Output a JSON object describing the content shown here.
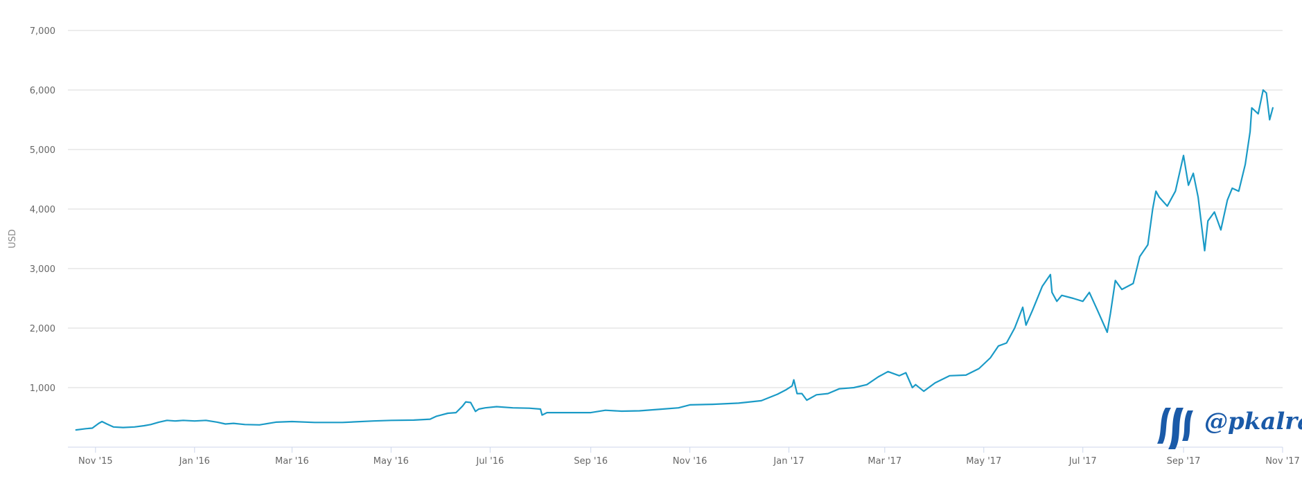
{
  "chart_data": {
    "type": "line",
    "title": "",
    "xlabel": "",
    "ylabel": "USD",
    "ylim": [
      0,
      7000
    ],
    "xlim": [
      "2015-10-15",
      "2017-11-01"
    ],
    "grid": true,
    "y_ticks": [
      {
        "value": 1000,
        "label": "1,000"
      },
      {
        "value": 2000,
        "label": "2,000"
      },
      {
        "value": 3000,
        "label": "3,000"
      },
      {
        "value": 4000,
        "label": "4,000"
      },
      {
        "value": 5000,
        "label": "5,000"
      },
      {
        "value": 6000,
        "label": "6,000"
      },
      {
        "value": 7000,
        "label": "7,000"
      }
    ],
    "x_ticks": [
      {
        "date": "2015-11-01",
        "label": "Nov '15"
      },
      {
        "date": "2016-01-01",
        "label": "Jan '16"
      },
      {
        "date": "2016-03-01",
        "label": "Mar '16"
      },
      {
        "date": "2016-05-01",
        "label": "May '16"
      },
      {
        "date": "2016-07-01",
        "label": "Jul '16"
      },
      {
        "date": "2016-09-01",
        "label": "Sep '16"
      },
      {
        "date": "2016-11-01",
        "label": "Nov '16"
      },
      {
        "date": "2017-01-01",
        "label": "Jan '17"
      },
      {
        "date": "2017-03-01",
        "label": "Mar '17"
      },
      {
        "date": "2017-05-01",
        "label": "May '17"
      },
      {
        "date": "2017-07-01",
        "label": "Jul '17"
      },
      {
        "date": "2017-09-01",
        "label": "Sep '17"
      },
      {
        "date": "2017-11-01",
        "label": "Nov '17"
      }
    ],
    "series": [
      {
        "color": "#1a9ac6",
        "points": [
          [
            "2015-10-20",
            290
          ],
          [
            "2015-10-26",
            310
          ],
          [
            "2015-10-30",
            320
          ],
          [
            "2015-11-03",
            400
          ],
          [
            "2015-11-05",
            430
          ],
          [
            "2015-11-08",
            390
          ],
          [
            "2015-11-12",
            340
          ],
          [
            "2015-11-18",
            330
          ],
          [
            "2015-11-25",
            340
          ],
          [
            "2015-12-01",
            360
          ],
          [
            "2015-12-05",
            380
          ],
          [
            "2015-12-10",
            420
          ],
          [
            "2015-12-15",
            450
          ],
          [
            "2015-12-20",
            440
          ],
          [
            "2015-12-25",
            450
          ],
          [
            "2016-01-01",
            440
          ],
          [
            "2016-01-08",
            450
          ],
          [
            "2016-01-15",
            420
          ],
          [
            "2016-01-20",
            390
          ],
          [
            "2016-01-25",
            400
          ],
          [
            "2016-02-01",
            380
          ],
          [
            "2016-02-10",
            375
          ],
          [
            "2016-02-20",
            420
          ],
          [
            "2016-03-01",
            430
          ],
          [
            "2016-03-15",
            415
          ],
          [
            "2016-04-01",
            415
          ],
          [
            "2016-04-20",
            440
          ],
          [
            "2016-05-01",
            450
          ],
          [
            "2016-05-15",
            455
          ],
          [
            "2016-05-25",
            470
          ],
          [
            "2016-05-29",
            520
          ],
          [
            "2016-06-05",
            570
          ],
          [
            "2016-06-10",
            580
          ],
          [
            "2016-06-14",
            690
          ],
          [
            "2016-06-16",
            760
          ],
          [
            "2016-06-19",
            750
          ],
          [
            "2016-06-22",
            600
          ],
          [
            "2016-06-24",
            640
          ],
          [
            "2016-06-28",
            660
          ],
          [
            "2016-07-05",
            680
          ],
          [
            "2016-07-15",
            660
          ],
          [
            "2016-07-25",
            655
          ],
          [
            "2016-08-01",
            640
          ],
          [
            "2016-08-02",
            540
          ],
          [
            "2016-08-05",
            580
          ],
          [
            "2016-08-15",
            580
          ],
          [
            "2016-09-01",
            580
          ],
          [
            "2016-09-10",
            620
          ],
          [
            "2016-09-20",
            605
          ],
          [
            "2016-10-01",
            610
          ],
          [
            "2016-10-15",
            640
          ],
          [
            "2016-10-25",
            660
          ],
          [
            "2016-11-01",
            710
          ],
          [
            "2016-11-15",
            720
          ],
          [
            "2016-12-01",
            740
          ],
          [
            "2016-12-15",
            780
          ],
          [
            "2016-12-25",
            890
          ],
          [
            "2016-12-30",
            960
          ],
          [
            "2017-01-03",
            1030
          ],
          [
            "2017-01-04",
            1130
          ],
          [
            "2017-01-06",
            900
          ],
          [
            "2017-01-09",
            900
          ],
          [
            "2017-01-12",
            790
          ],
          [
            "2017-01-18",
            880
          ],
          [
            "2017-01-25",
            900
          ],
          [
            "2017-02-01",
            980
          ],
          [
            "2017-02-10",
            1000
          ],
          [
            "2017-02-18",
            1050
          ],
          [
            "2017-02-25",
            1180
          ],
          [
            "2017-03-03",
            1270
          ],
          [
            "2017-03-10",
            1200
          ],
          [
            "2017-03-14",
            1250
          ],
          [
            "2017-03-18",
            1000
          ],
          [
            "2017-03-20",
            1050
          ],
          [
            "2017-03-25",
            940
          ],
          [
            "2017-04-01",
            1080
          ],
          [
            "2017-04-10",
            1200
          ],
          [
            "2017-04-20",
            1210
          ],
          [
            "2017-04-28",
            1320
          ],
          [
            "2017-05-05",
            1500
          ],
          [
            "2017-05-10",
            1700
          ],
          [
            "2017-05-15",
            1750
          ],
          [
            "2017-05-20",
            2000
          ],
          [
            "2017-05-25",
            2350
          ],
          [
            "2017-05-27",
            2050
          ],
          [
            "2017-05-31",
            2300
          ],
          [
            "2017-06-06",
            2700
          ],
          [
            "2017-06-11",
            2900
          ],
          [
            "2017-06-12",
            2600
          ],
          [
            "2017-06-15",
            2450
          ],
          [
            "2017-06-18",
            2550
          ],
          [
            "2017-06-25",
            2500
          ],
          [
            "2017-07-01",
            2450
          ],
          [
            "2017-07-05",
            2600
          ],
          [
            "2017-07-10",
            2300
          ],
          [
            "2017-07-16",
            1930
          ],
          [
            "2017-07-18",
            2250
          ],
          [
            "2017-07-21",
            2800
          ],
          [
            "2017-07-25",
            2650
          ],
          [
            "2017-08-01",
            2750
          ],
          [
            "2017-08-05",
            3200
          ],
          [
            "2017-08-10",
            3400
          ],
          [
            "2017-08-13",
            4000
          ],
          [
            "2017-08-15",
            4300
          ],
          [
            "2017-08-17",
            4200
          ],
          [
            "2017-08-22",
            4050
          ],
          [
            "2017-08-27",
            4300
          ],
          [
            "2017-09-01",
            4900
          ],
          [
            "2017-09-04",
            4400
          ],
          [
            "2017-09-07",
            4600
          ],
          [
            "2017-09-10",
            4200
          ],
          [
            "2017-09-14",
            3300
          ],
          [
            "2017-09-16",
            3800
          ],
          [
            "2017-09-20",
            3950
          ],
          [
            "2017-09-24",
            3650
          ],
          [
            "2017-09-28",
            4150
          ],
          [
            "2017-10-01",
            4350
          ],
          [
            "2017-10-05",
            4300
          ],
          [
            "2017-10-09",
            4750
          ],
          [
            "2017-10-12",
            5300
          ],
          [
            "2017-10-13",
            5700
          ],
          [
            "2017-10-17",
            5600
          ],
          [
            "2017-10-20",
            6000
          ],
          [
            "2017-10-22",
            5950
          ],
          [
            "2017-10-24",
            5500
          ],
          [
            "2017-10-26",
            5700
          ]
        ]
      }
    ]
  },
  "watermark": {
    "text": "@pkalra",
    "logo_icon": "steemit-logo-icon",
    "color": "#1a5aa8"
  }
}
